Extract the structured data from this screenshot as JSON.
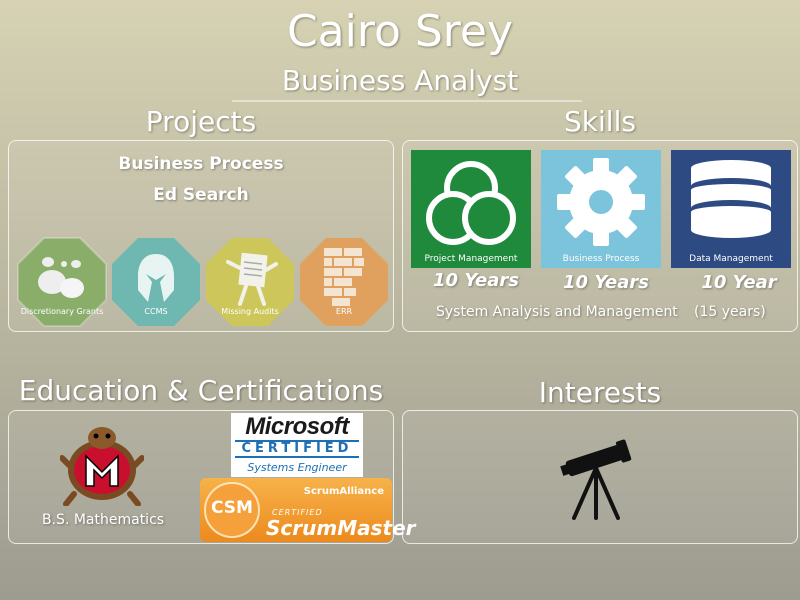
{
  "header": {
    "name": "Cairo Srey",
    "role": "Business Analyst"
  },
  "projects": {
    "title": "Projects",
    "lines": [
      "Business Process",
      "Ed Search"
    ],
    "badges": [
      {
        "label": "Discretionary Grants",
        "color": "#8aae6a",
        "icon": "rocks-icon"
      },
      {
        "label": "CCMS",
        "color": "#6fb8b2",
        "icon": "helmet-icon"
      },
      {
        "label": "Missing Audits",
        "color": "#cdc65a",
        "icon": "document-character-icon"
      },
      {
        "label": "ERR",
        "color": "#e0a15e",
        "icon": "brick-wall-icon"
      }
    ]
  },
  "skills": {
    "title": "Skills",
    "tiles": [
      {
        "label": "Project Management",
        "years": "10 Years",
        "color": "#1f8a3c",
        "icon": "venn-circles-icon"
      },
      {
        "label": "Business Process",
        "years": "10 Years",
        "color": "#7cc4dc",
        "icon": "gear-icon"
      },
      {
        "label": "Data Management",
        "years": "10 Year",
        "color": "#2d4a82",
        "icon": "database-icon"
      }
    ],
    "footer_text": "System Analysis and Management",
    "footer_years": "(15 years)"
  },
  "education": {
    "title": "Education & Certifications",
    "degree": "B.S. Mathematics",
    "microsoft": {
      "brand": "Microsoft",
      "certified": "CERTIFIED",
      "sub": "Systems Engineer"
    },
    "scrum": {
      "circle": "CSM",
      "alliance": "ScrumAlliance",
      "certified": "CERTIFIED",
      "master": "ScrumMaster"
    }
  },
  "interests": {
    "title": "Interests",
    "icon": "telescope-icon"
  }
}
